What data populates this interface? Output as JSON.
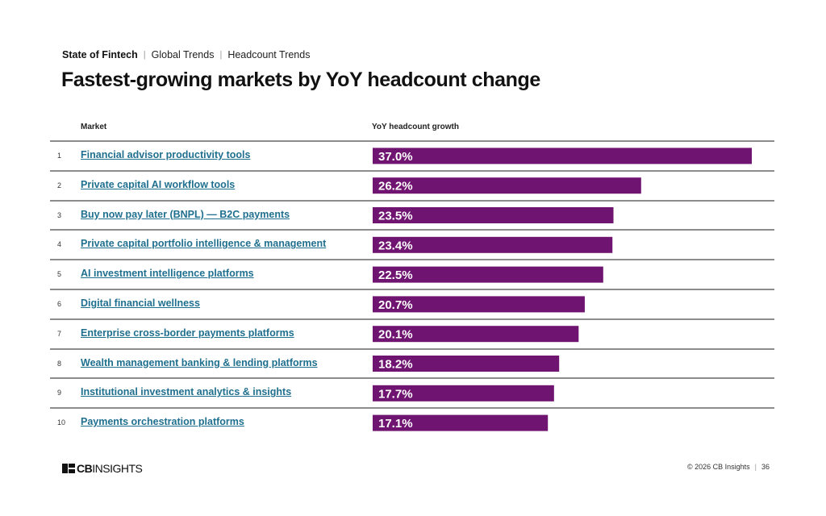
{
  "breadcrumb": {
    "items": [
      "State of Fintech",
      "Global Trends",
      "Headcount Trends"
    ],
    "separator": "|"
  },
  "title": "Fastest-growing markets by YoY headcount change",
  "table": {
    "columns": [
      "Market",
      "YoY headcount growth"
    ]
  },
  "colors": {
    "bar": "#6f1470",
    "link": "#1f6f8f",
    "rule": "#8c8c8c"
  },
  "chart_data": {
    "type": "bar",
    "orientation": "horizontal",
    "title": "Fastest-growing markets by YoY headcount change",
    "xlabel": "YoY headcount growth",
    "ylabel": "Market",
    "unit": "%",
    "xlim": [
      0,
      37.0
    ],
    "grid": false,
    "legend": "none",
    "categories": [
      "Financial advisor productivity tools",
      "Private capital AI workflow tools",
      "Buy now pay later (BNPL) — B2C payments",
      "Private capital portfolio intelligence & management",
      "AI investment intelligence platforms",
      "Digital financial wellness",
      "Enterprise cross-border payments platforms",
      "Wealth management banking & lending platforms",
      "Institutional investment analytics & insights",
      "Payments orchestration platforms"
    ],
    "ranks": [
      "1",
      "2",
      "3",
      "4",
      "5",
      "6",
      "7",
      "8",
      "9",
      "10"
    ],
    "values": [
      37.0,
      26.2,
      23.5,
      23.4,
      22.5,
      20.7,
      20.1,
      18.2,
      17.7,
      17.1
    ],
    "labels": [
      "37.0%",
      "26.2%",
      "23.5%",
      "23.4%",
      "22.5%",
      "20.7%",
      "20.1%",
      "18.2%",
      "17.7%",
      "17.1%"
    ]
  },
  "footer": {
    "logo_bold": "CB",
    "logo_thin": "INSIGHTS",
    "copyright": "© 2026 CB Insights",
    "separator": "|",
    "page_number": "36"
  }
}
